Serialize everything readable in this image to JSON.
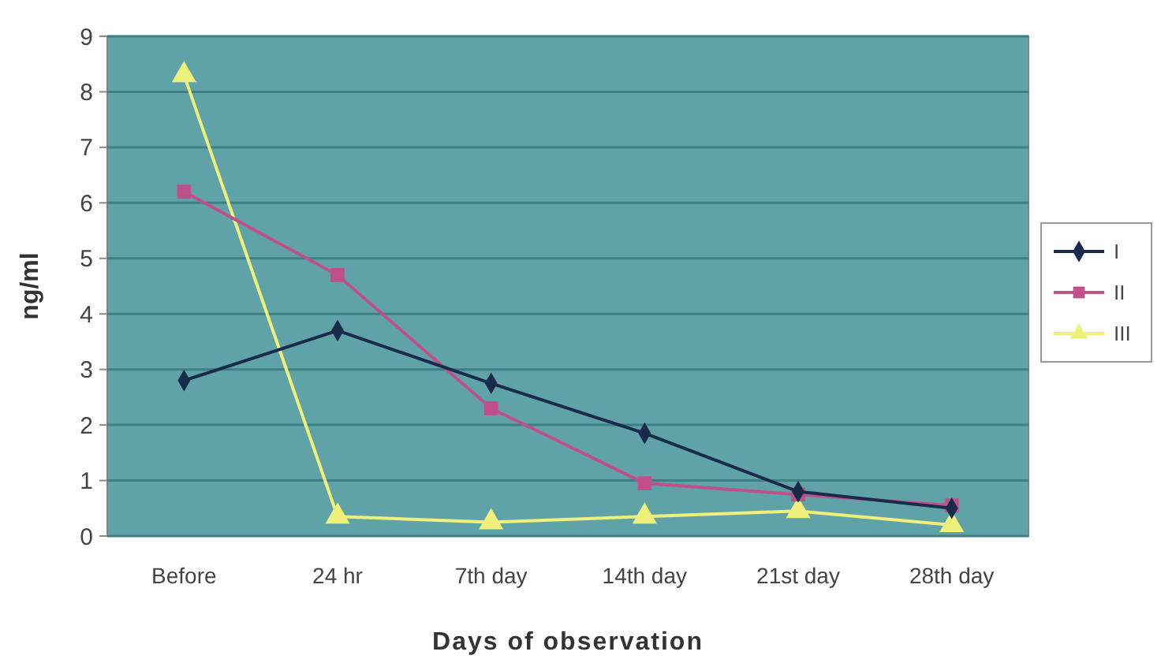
{
  "chart_data": {
    "type": "line",
    "xlabel": "Days of observation",
    "ylabel": "ng/ml",
    "categories": [
      "Before",
      "24 hr",
      "7th day",
      "14th day",
      "21st day",
      "28th day"
    ],
    "series": [
      {
        "name": "I",
        "color": "#1a2a4a",
        "marker": "diamond",
        "values": [
          2.8,
          3.7,
          2.75,
          1.85,
          0.8,
          0.5
        ]
      },
      {
        "name": "II",
        "color": "#c0508a",
        "marker": "square",
        "values": [
          6.2,
          4.7,
          2.3,
          0.95,
          0.75,
          0.55
        ]
      },
      {
        "name": "III",
        "color": "#eef07a",
        "marker": "triangle",
        "values": [
          8.3,
          0.35,
          0.25,
          0.35,
          0.45,
          0.2
        ]
      }
    ],
    "ylim": [
      0,
      9
    ],
    "yticks": [
      0,
      1,
      2,
      3,
      4,
      5,
      6,
      7,
      8,
      9
    ],
    "grid": "y",
    "legend": "right"
  }
}
